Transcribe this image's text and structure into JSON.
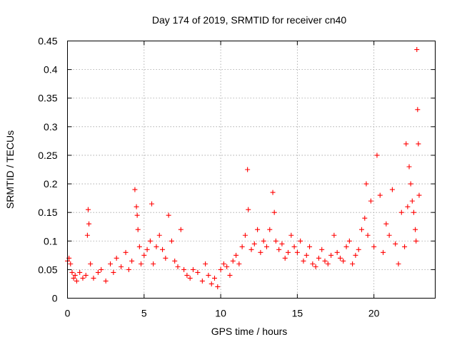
{
  "chart_data": {
    "type": "scatter",
    "title": "Day 174 of 2019, SRMTID for receiver cn40",
    "xlabel": "GPS time / hours",
    "ylabel": "SRMTID / TECUs",
    "xlim": [
      0,
      24
    ],
    "ylim": [
      0,
      0.45
    ],
    "xticks": [
      0,
      5,
      10,
      15,
      20
    ],
    "xtick_labels": [
      "0",
      "5",
      "10",
      "15",
      "20"
    ],
    "yticks": [
      0,
      0.05,
      0.1,
      0.15,
      0.2,
      0.25,
      0.3,
      0.35,
      0.4,
      0.45
    ],
    "ytick_labels": [
      "0",
      "0.05",
      "0.1",
      "0.15",
      "0.2",
      "0.25",
      "0.3",
      "0.35",
      "0.4",
      "0.45"
    ],
    "grid": true,
    "marker": "+",
    "color": "#ff0000",
    "series": [
      {
        "name": "SRMTID",
        "x": [
          0.0,
          0.1,
          0.2,
          0.3,
          0.4,
          0.5,
          0.6,
          0.8,
          1.0,
          1.2,
          1.3,
          1.35,
          1.4,
          1.5,
          1.7,
          2.0,
          2.2,
          2.5,
          2.8,
          3.0,
          3.2,
          3.5,
          3.8,
          4.0,
          4.2,
          4.4,
          4.5,
          4.55,
          4.6,
          4.7,
          4.8,
          5.0,
          5.2,
          5.4,
          5.5,
          5.6,
          5.8,
          6.0,
          6.2,
          6.4,
          6.6,
          6.8,
          7.0,
          7.2,
          7.4,
          7.6,
          7.8,
          8.0,
          8.2,
          8.5,
          8.8,
          9.0,
          9.2,
          9.4,
          9.6,
          9.8,
          10.0,
          10.2,
          10.4,
          10.6,
          10.8,
          11.0,
          11.2,
          11.4,
          11.6,
          11.75,
          11.8,
          12.0,
          12.2,
          12.4,
          12.6,
          12.8,
          13.0,
          13.2,
          13.4,
          13.5,
          13.6,
          13.8,
          14.0,
          14.2,
          14.4,
          14.6,
          14.8,
          15.0,
          15.2,
          15.4,
          15.6,
          15.8,
          16.0,
          16.2,
          16.4,
          16.6,
          16.8,
          17.0,
          17.2,
          17.4,
          17.6,
          17.8,
          18.0,
          18.2,
          18.4,
          18.6,
          18.8,
          19.0,
          19.2,
          19.4,
          19.5,
          19.6,
          19.8,
          20.0,
          20.2,
          20.4,
          20.6,
          20.8,
          21.0,
          21.2,
          21.4,
          21.6,
          21.8,
          22.0,
          22.1,
          22.2,
          22.3,
          22.4,
          22.5,
          22.6,
          22.7,
          22.75,
          22.8,
          22.85,
          22.9,
          22.95
        ],
        "y": [
          0.065,
          0.07,
          0.06,
          0.045,
          0.035,
          0.04,
          0.03,
          0.045,
          0.035,
          0.04,
          0.11,
          0.155,
          0.13,
          0.06,
          0.035,
          0.045,
          0.05,
          0.03,
          0.06,
          0.045,
          0.07,
          0.055,
          0.08,
          0.05,
          0.065,
          0.19,
          0.16,
          0.145,
          0.12,
          0.09,
          0.06,
          0.075,
          0.085,
          0.1,
          0.165,
          0.06,
          0.09,
          0.11,
          0.085,
          0.07,
          0.145,
          0.1,
          0.065,
          0.055,
          0.12,
          0.05,
          0.04,
          0.035,
          0.05,
          0.045,
          0.03,
          0.06,
          0.04,
          0.025,
          0.035,
          0.02,
          0.05,
          0.06,
          0.055,
          0.04,
          0.065,
          0.075,
          0.06,
          0.09,
          0.11,
          0.225,
          0.155,
          0.085,
          0.095,
          0.12,
          0.08,
          0.1,
          0.09,
          0.12,
          0.185,
          0.15,
          0.1,
          0.085,
          0.095,
          0.07,
          0.08,
          0.11,
          0.09,
          0.08,
          0.1,
          0.065,
          0.075,
          0.09,
          0.06,
          0.055,
          0.07,
          0.085,
          0.065,
          0.06,
          0.075,
          0.11,
          0.08,
          0.07,
          0.065,
          0.09,
          0.1,
          0.06,
          0.075,
          0.085,
          0.12,
          0.14,
          0.2,
          0.11,
          0.17,
          0.09,
          0.25,
          0.18,
          0.08,
          0.13,
          0.11,
          0.19,
          0.095,
          0.06,
          0.15,
          0.09,
          0.27,
          0.16,
          0.23,
          0.2,
          0.17,
          0.15,
          0.12,
          0.1,
          0.435,
          0.33,
          0.27,
          0.18
        ]
      }
    ]
  }
}
